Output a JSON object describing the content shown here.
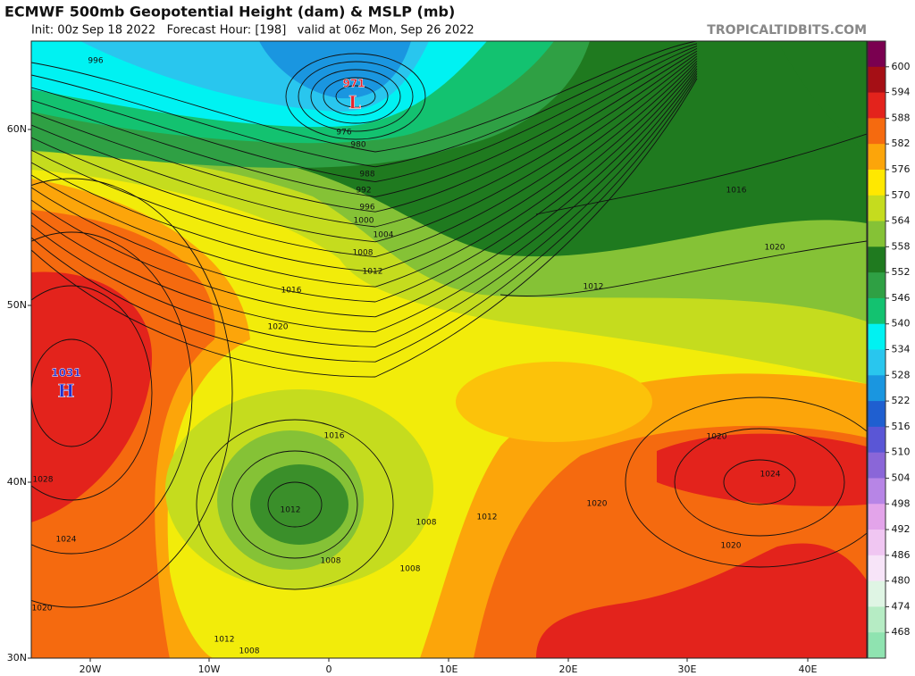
{
  "header": {
    "title": "ECMWF 500mb Geopotential Height (dam) & MSLP (mb)",
    "subtitle": "Init: 00z Sep 18 2022   Forecast Hour: [198]   valid at 06z Mon, Sep 26 2022",
    "site": "TROPICALTIDBITS.COM"
  },
  "map": {
    "lat_labels": [
      "60N",
      "50N",
      "40N",
      "30N"
    ],
    "lon_labels": [
      "20W",
      "10W",
      "0",
      "10E",
      "20E",
      "30E",
      "40E"
    ],
    "centers": [
      {
        "symbol": "L",
        "value": "971",
        "color": "#e8202a"
      },
      {
        "symbol": "H",
        "value": "1031",
        "color": "#2030d0"
      }
    ],
    "isobar_labels": [
      "996",
      "976",
      "980",
      "988",
      "992",
      "996",
      "1000",
      "1004",
      "1008",
      "1012",
      "1016",
      "1020",
      "1016",
      "1012",
      "1008",
      "1008",
      "1008",
      "1012",
      "1020",
      "1020",
      "1024",
      "1020",
      "1012",
      "1016",
      "1020",
      "1028",
      "1024",
      "1020",
      "1012",
      "1008"
    ]
  },
  "colorbar": {
    "levels": [
      600,
      594,
      588,
      582,
      576,
      570,
      564,
      558,
      552,
      546,
      540,
      534,
      528,
      522,
      516,
      510,
      504,
      498,
      492,
      486,
      480,
      474,
      468
    ],
    "colors": [
      "#7a0050",
      "#a50f15",
      "#e3231c",
      "#f56a0f",
      "#fca50a",
      "#ffe800",
      "#c5dc1e",
      "#85c236",
      "#1f7a1f",
      "#2fa044",
      "#13c270",
      "#00f2f2",
      "#29c6ee",
      "#1a96e0",
      "#1f5fd0",
      "#5a56d6",
      "#8a66d8",
      "#b785e6",
      "#e3a4ea",
      "#f0c6f2",
      "#f7e4f8",
      "#dff5e4",
      "#b6ecc4",
      "#8fe3b0"
    ]
  }
}
